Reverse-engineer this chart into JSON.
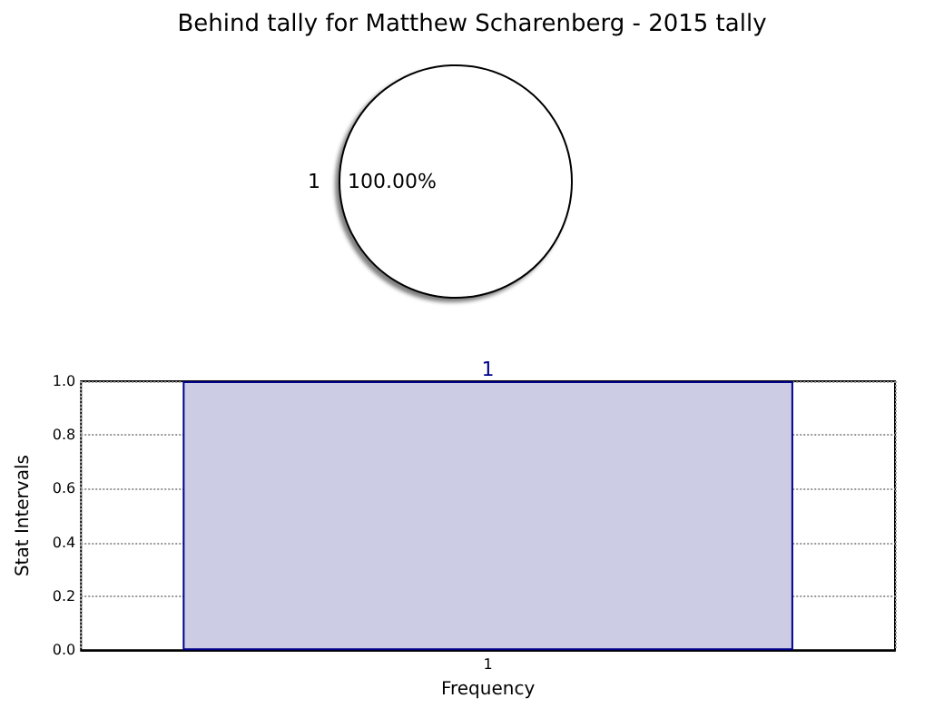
{
  "chart_data": [
    {
      "type": "pie",
      "title": "Behind tally for Matthew Scharenberg - 2015 tally",
      "categories": [
        "1"
      ],
      "values": [
        100
      ],
      "colors": [
        "#ffffff"
      ],
      "value_labels": [
        "100.00%"
      ],
      "legend": false
    },
    {
      "type": "bar",
      "categories": [
        "1"
      ],
      "values": [
        1
      ],
      "color": "#ccccE5",
      "value_labels": [
        "1"
      ],
      "xlabel": "Frequency",
      "ylabel": "Stat Intervals",
      "ylim": [
        0,
        1
      ],
      "yticks": [
        {
          "value": 0,
          "label": "0.0"
        },
        {
          "value": 0.2,
          "label": "0.2"
        },
        {
          "value": 0.4,
          "label": "0.4"
        },
        {
          "value": 0.6,
          "label": "0.6"
        },
        {
          "value": 0.8,
          "label": "0.8"
        },
        {
          "value": 1,
          "label": "1.0"
        }
      ],
      "grid": true,
      "legend": false
    }
  ]
}
